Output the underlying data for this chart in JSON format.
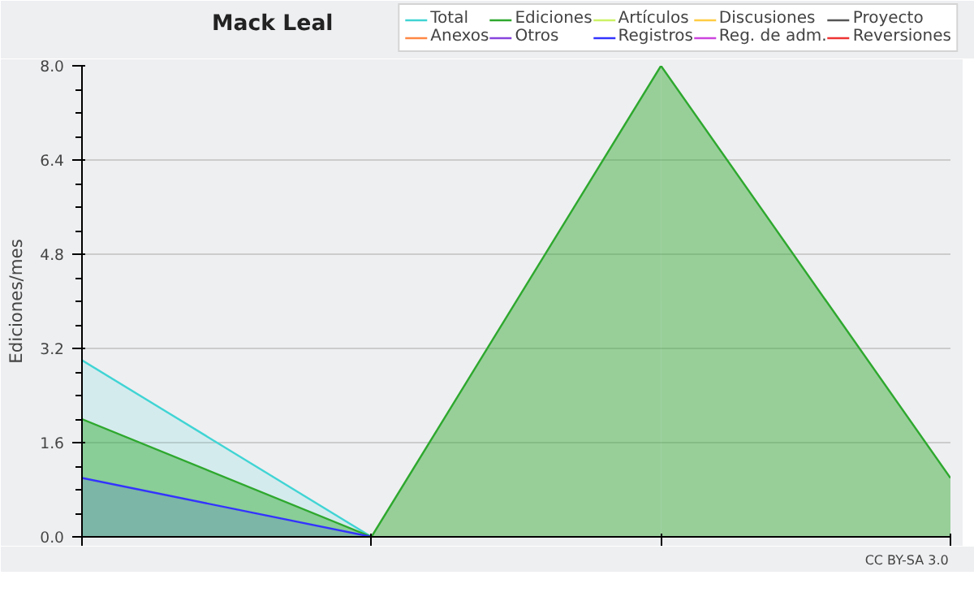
{
  "chart_data": {
    "type": "area",
    "title": "Mack Leal",
    "ylabel": "Ediciones/mes",
    "categories": [
      null,
      null,
      null,
      null
    ],
    "series": [
      {
        "name": "Total",
        "color": "#40d4d4",
        "values": [
          3,
          0,
          null,
          null
        ]
      },
      {
        "name": "Ediciones",
        "color": "#2ea82e",
        "values": [
          2,
          0,
          8,
          1
        ]
      },
      {
        "name": "Artículos",
        "color": "#ccf266",
        "values": [
          null,
          null,
          null,
          null
        ]
      },
      {
        "name": "Discusiones",
        "color": "#ffcc44",
        "values": [
          null,
          null,
          null,
          null
        ]
      },
      {
        "name": "Proyecto",
        "color": "#555555",
        "values": [
          null,
          null,
          null,
          null
        ]
      },
      {
        "name": "Anexos",
        "color": "#ff8844",
        "values": [
          null,
          null,
          null,
          null
        ]
      },
      {
        "name": "Otros",
        "color": "#8844dd",
        "values": [
          null,
          null,
          null,
          null
        ]
      },
      {
        "name": "Registros",
        "color": "#3333ff",
        "values": [
          1,
          0,
          null,
          null
        ]
      },
      {
        "name": "Reg. de adm.",
        "color": "#cc44dd",
        "values": [
          null,
          null,
          null,
          null
        ]
      },
      {
        "name": "Reversiones",
        "color": "#ee3333",
        "values": [
          null,
          null,
          null,
          null
        ]
      }
    ],
    "ylim": [
      0,
      8
    ],
    "yticks": [
      {
        "value": 0,
        "label": "0.0"
      },
      {
        "value": 1.6,
        "label": "1.6"
      },
      {
        "value": 3.2,
        "label": "3.2"
      },
      {
        "value": 4.8,
        "label": "4.8"
      },
      {
        "value": 6.4,
        "label": "6.4"
      },
      {
        "value": 8,
        "label": "8.0"
      }
    ],
    "grid": "y",
    "legend": "top right",
    "annotations": [
      "CC BY-SA 3.0"
    ]
  }
}
